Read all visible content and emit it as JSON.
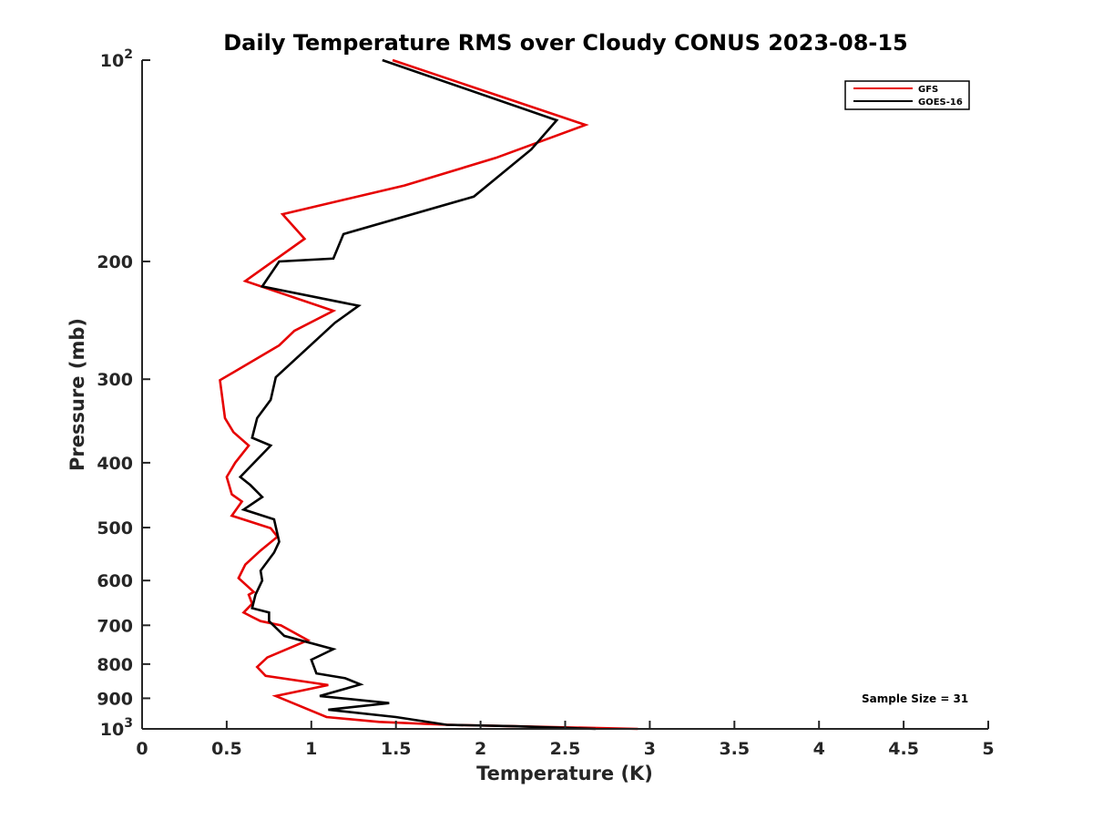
{
  "chart_data": {
    "type": "line",
    "title": "Daily Temperature RMS over Cloudy CONUS 2023-08-15",
    "xlabel": "Temperature (K)",
    "ylabel": "Pressure (mb)",
    "xlim": [
      0,
      5
    ],
    "ylim": [
      100,
      1000
    ],
    "yscale": "log",
    "y_reversed": true,
    "x_ticks": [
      "0",
      "0.5",
      "1",
      "1.5",
      "2",
      "2.5",
      "3",
      "3.5",
      "4",
      "4.5",
      "5"
    ],
    "y_ticks": [
      {
        "value": 100,
        "label": "10",
        "sup": "2"
      },
      {
        "value": 200,
        "label": "200"
      },
      {
        "value": 300,
        "label": "300"
      },
      {
        "value": 400,
        "label": "400"
      },
      {
        "value": 500,
        "label": "500"
      },
      {
        "value": 600,
        "label": "600"
      },
      {
        "value": 700,
        "label": "700"
      },
      {
        "value": 800,
        "label": "800"
      },
      {
        "value": 900,
        "label": "900"
      },
      {
        "value": 1000,
        "label": "10",
        "sup": "3"
      }
    ],
    "grid": false,
    "legend_position": "top-right",
    "annotation": "Sample Size = 31",
    "series": [
      {
        "name": "GFS",
        "color": "#e60000",
        "points": [
          [
            1.48,
            100
          ],
          [
            2.62,
            125
          ],
          [
            2.09,
            140
          ],
          [
            1.55,
            154
          ],
          [
            0.83,
            170
          ],
          [
            0.96,
            185
          ],
          [
            0.61,
            214
          ],
          [
            1.13,
            237
          ],
          [
            0.9,
            254
          ],
          [
            0.81,
            267
          ],
          [
            0.46,
            301
          ],
          [
            0.49,
            343
          ],
          [
            0.54,
            360
          ],
          [
            0.63,
            377
          ],
          [
            0.55,
            400
          ],
          [
            0.5,
            420
          ],
          [
            0.53,
            446
          ],
          [
            0.59,
            457
          ],
          [
            0.53,
            480
          ],
          [
            0.76,
            501
          ],
          [
            0.8,
            516
          ],
          [
            0.7,
            541
          ],
          [
            0.61,
            568
          ],
          [
            0.57,
            595
          ],
          [
            0.66,
            624
          ],
          [
            0.63,
            630
          ],
          [
            0.65,
            650
          ],
          [
            0.6,
            670
          ],
          [
            0.65,
            680
          ],
          [
            0.7,
            690
          ],
          [
            0.82,
            700
          ],
          [
            0.98,
            737
          ],
          [
            0.74,
            782
          ],
          [
            0.68,
            808
          ],
          [
            0.73,
            833
          ],
          [
            1.1,
            860
          ],
          [
            0.79,
            893
          ],
          [
            1.09,
            960
          ],
          [
            1.4,
            976
          ],
          [
            1.8,
            986
          ],
          [
            2.2,
            991
          ],
          [
            2.93,
            1000
          ]
        ]
      },
      {
        "name": "GOES-16",
        "color": "#000000",
        "points": [
          [
            1.42,
            100
          ],
          [
            2.45,
            123
          ],
          [
            2.3,
            136
          ],
          [
            1.96,
            160
          ],
          [
            1.19,
            182
          ],
          [
            1.13,
            198
          ],
          [
            0.81,
            200
          ],
          [
            0.71,
            218
          ],
          [
            1.28,
            233
          ],
          [
            1.14,
            247
          ],
          [
            0.79,
            298
          ],
          [
            0.76,
            322
          ],
          [
            0.68,
            343
          ],
          [
            0.65,
            367
          ],
          [
            0.76,
            377
          ],
          [
            0.58,
            420
          ],
          [
            0.64,
            432
          ],
          [
            0.71,
            450
          ],
          [
            0.6,
            470
          ],
          [
            0.78,
            486
          ],
          [
            0.81,
            525
          ],
          [
            0.78,
            545
          ],
          [
            0.7,
            580
          ],
          [
            0.71,
            600
          ],
          [
            0.67,
            630
          ],
          [
            0.65,
            660
          ],
          [
            0.75,
            670
          ],
          [
            0.75,
            690
          ],
          [
            0.84,
            726
          ],
          [
            1.13,
            760
          ],
          [
            1.0,
            788
          ],
          [
            1.03,
            826
          ],
          [
            1.2,
            840
          ],
          [
            1.29,
            858
          ],
          [
            1.05,
            893
          ],
          [
            1.46,
            915
          ],
          [
            1.1,
            936
          ],
          [
            1.5,
            960
          ],
          [
            1.8,
            986
          ],
          [
            2.2,
            991
          ],
          [
            2.68,
            1000
          ]
        ]
      }
    ]
  }
}
